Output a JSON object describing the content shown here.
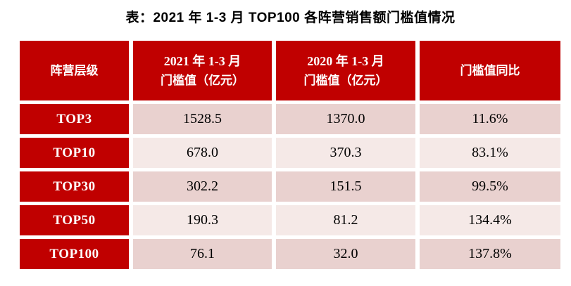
{
  "title": "表：2021 年 1-3 月 TOP100 各阵营销售额门槛值情况",
  "colors": {
    "header_red": "#c00000",
    "row_band_dark": "#e9d1cf",
    "row_band_light": "#f5e9e7",
    "header_text": "#ffffff",
    "body_text": "#000000"
  },
  "table": {
    "header": {
      "tier_col": "阵营层级",
      "col_2021_line1": "2021 年 1-3 月",
      "col_2021_line2": "门槛值（亿元）",
      "col_2020_line1": "2020 年 1-3 月",
      "col_2020_line2": "门槛值（亿元）",
      "yoy_col": "门槛值同比"
    },
    "rows": [
      {
        "tier": "TOP3",
        "v2021": "1528.5",
        "v2020": "1370.0",
        "yoy": "11.6%"
      },
      {
        "tier": "TOP10",
        "v2021": "678.0",
        "v2020": "370.3",
        "yoy": "83.1%"
      },
      {
        "tier": "TOP30",
        "v2021": "302.2",
        "v2020": "151.5",
        "yoy": "99.5%"
      },
      {
        "tier": "TOP50",
        "v2021": "190.3",
        "v2020": "81.2",
        "yoy": "134.4%"
      },
      {
        "tier": "TOP100",
        "v2021": "76.1",
        "v2020": "32.0",
        "yoy": "137.8%"
      }
    ]
  },
  "chart_data": {
    "type": "table",
    "title": "表：2021 年 1-3 月 TOP100 各阵营销售额门槛值情况",
    "columns": [
      "阵营层级",
      "2021 年 1-3 月门槛值（亿元）",
      "2020 年 1-3 月门槛值（亿元）",
      "门槛值同比"
    ],
    "rows": [
      [
        "TOP3",
        1528.5,
        1370.0,
        "11.6%"
      ],
      [
        "TOP10",
        678.0,
        370.3,
        "83.1%"
      ],
      [
        "TOP30",
        302.2,
        151.5,
        "99.5%"
      ],
      [
        "TOP50",
        190.3,
        81.2,
        "134.4%"
      ],
      [
        "TOP100",
        76.1,
        32.0,
        "137.8%"
      ]
    ],
    "notes": "Banded rows: odd rows darker pink #e9d1cf, even rows lighter pink #f5e9e7; header and tier column cells dark red #c00000 with white text; yoy column = threshold value year-over-year change"
  }
}
